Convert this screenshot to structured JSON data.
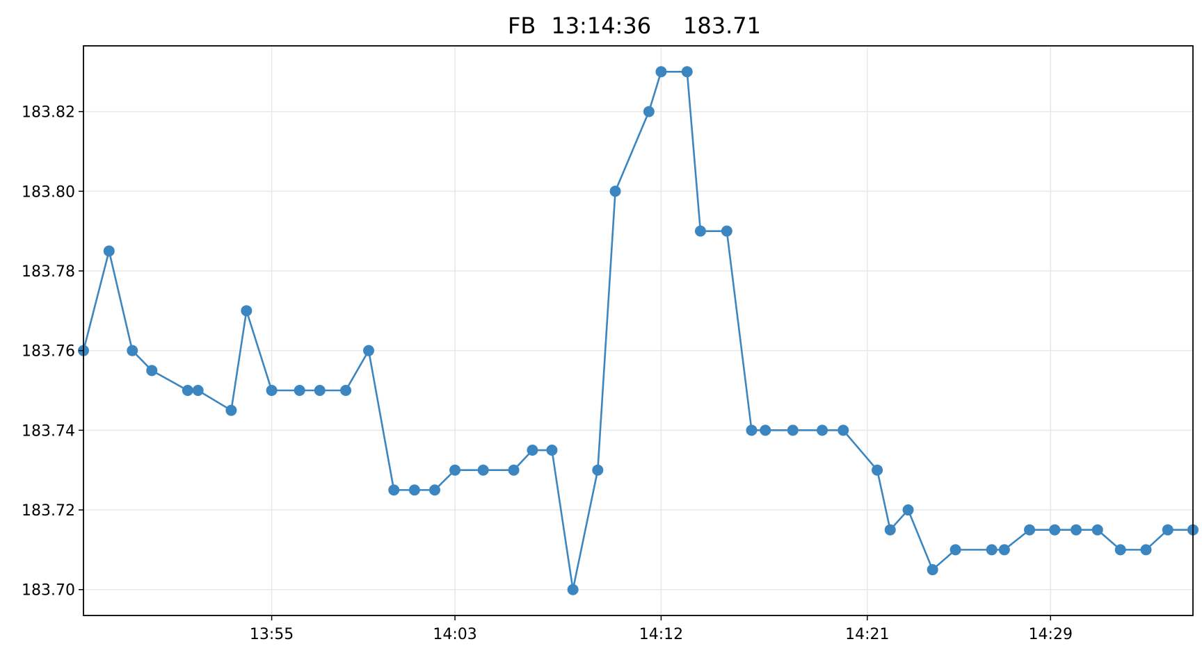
{
  "chart_data": {
    "type": "line",
    "title": {
      "symbol": "FB",
      "time": "13:14:36",
      "price": "183.71"
    },
    "xlabel": "",
    "ylabel": "",
    "x_tick_labels": [
      "13:55",
      "14:03",
      "14:12",
      "14:21",
      "14:29"
    ],
    "y_tick_labels": [
      "183.70",
      "183.72",
      "183.74",
      "183.76",
      "183.78",
      "183.80",
      "183.82"
    ],
    "ylim": [
      183.6935,
      183.8365
    ],
    "grid": true,
    "markers": true,
    "line_color": "#3b86c0",
    "series": [
      {
        "x": [
          "13:46:47",
          "13:47:54",
          "13:48:55",
          "13:49:46",
          "13:51:20",
          "13:51:47",
          "13:53:14",
          "13:53:54",
          "13:55:00",
          "13:56:13",
          "13:57:06",
          "13:58:14",
          "13:59:14",
          "14:00:20",
          "14:01:14",
          "14:02:07",
          "14:03:00",
          "14:04:14",
          "14:05:34",
          "14:06:23",
          "14:07:14",
          "14:08:09",
          "14:09:14",
          "14:10:00",
          "14:11:28",
          "14:12:00",
          "14:13:08",
          "14:13:43",
          "14:14:52",
          "14:15:57",
          "14:16:33",
          "14:17:45",
          "14:19:02",
          "14:19:57",
          "14:21:26",
          "14:22:00",
          "14:22:47",
          "14:23:51",
          "14:24:51",
          "14:26:26",
          "14:26:59",
          "14:28:05",
          "14:29:11",
          "14:30:07",
          "14:31:03",
          "14:32:03",
          "14:33:10",
          "14:34:07",
          "14:35:13"
        ],
        "values": [
          183.76,
          183.785,
          183.76,
          183.755,
          183.75,
          183.75,
          183.745,
          183.77,
          183.75,
          183.75,
          183.75,
          183.75,
          183.76,
          183.725,
          183.725,
          183.725,
          183.73,
          183.73,
          183.73,
          183.735,
          183.735,
          183.7,
          183.73,
          183.8,
          183.82,
          183.83,
          183.83,
          183.79,
          183.79,
          183.74,
          183.74,
          183.74,
          183.74,
          183.74,
          183.73,
          183.715,
          183.72,
          183.705,
          183.71,
          183.71,
          183.71,
          183.715,
          183.715,
          183.715,
          183.715,
          183.71,
          183.71,
          183.715,
          183.715
        ]
      }
    ]
  }
}
